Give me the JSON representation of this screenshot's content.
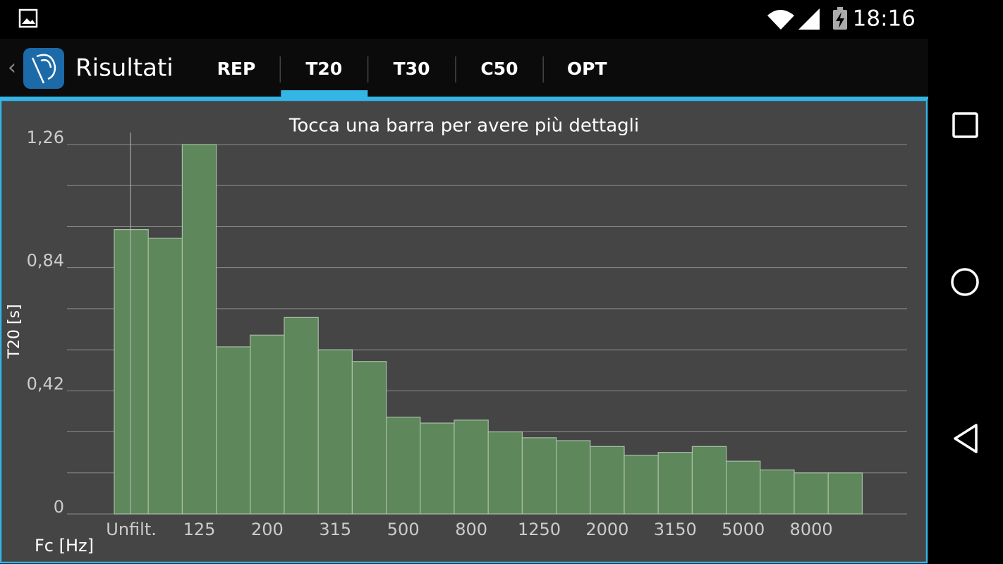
{
  "status_bar": {
    "time": "18:16"
  },
  "action_bar": {
    "title": "Risultati",
    "tabs": [
      "REP",
      "T20",
      "T30",
      "C50",
      "OPT"
    ],
    "selected_tab": 1
  },
  "chart_data": {
    "type": "bar",
    "title": "Tocca una barra per avere più dettagli",
    "y_label": "T20 [s]",
    "x_label": "Fc [Hz]",
    "categories": [
      "Unfilt.",
      null,
      "125",
      null,
      "200",
      null,
      "315",
      null,
      "500",
      null,
      "800",
      null,
      "1250",
      null,
      "2000",
      null,
      "3150",
      null,
      "5000",
      null,
      "8000",
      null
    ],
    "values": [
      0.97,
      0.94,
      1.26,
      0.57,
      0.61,
      0.67,
      0.56,
      0.52,
      0.33,
      0.31,
      0.32,
      0.28,
      0.26,
      0.25,
      0.23,
      0.2,
      0.21,
      0.23,
      0.18,
      0.15,
      0.14,
      0.14
    ],
    "color": "#5e875c",
    "ylim": [
      0,
      1.26
    ],
    "yticks": [
      0,
      {
        "value": 0.42,
        "label": "0,42"
      },
      {
        "value": 0.84,
        "label": "0,84"
      },
      {
        "value": 1.26,
        "label": "1,26"
      }
    ],
    "y_minor_ticks": [
      0.14,
      0.28,
      0.56,
      0.7,
      0.98,
      1.12
    ],
    "grid": true
  }
}
